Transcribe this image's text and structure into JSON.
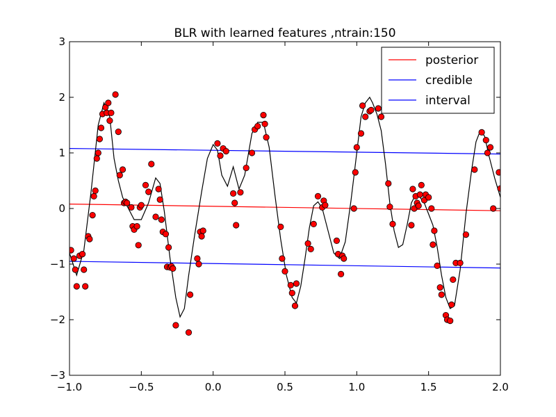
{
  "chart_data": {
    "type": "line",
    "title": "BLR with learned features ,ntrain:150",
    "xlabel": "",
    "ylabel": "",
    "xlim": [
      -1.0,
      2.0
    ],
    "ylim": [
      -3,
      3
    ],
    "x_ticks": [
      -1.0,
      -0.5,
      0.0,
      0.5,
      1.0,
      1.5,
      2.0
    ],
    "x_tick_labels": [
      "−1.0",
      "−0.5",
      "0.0",
      "0.5",
      "1.0",
      "1.5",
      "2.0"
    ],
    "y_ticks": [
      -3,
      -2,
      -1,
      0,
      1,
      2,
      3
    ],
    "y_tick_labels": [
      "−3",
      "−2",
      "−1",
      "0",
      "1",
      "2",
      "3"
    ],
    "grid": false,
    "legend_position": "top-right",
    "legend": [
      {
        "label": "posterior",
        "color": "#ff0000"
      },
      {
        "label": "credible",
        "color": "#0000ff"
      },
      {
        "label": "interval",
        "color": "#0000ff"
      }
    ],
    "series": [
      {
        "name": "posterior",
        "type": "line",
        "color": "#ff0000",
        "x": [
          -1.0,
          2.0
        ],
        "y": [
          0.08,
          -0.04
        ]
      },
      {
        "name": "credible",
        "type": "line",
        "color": "#0000ff",
        "x": [
          -1.0,
          2.0
        ],
        "y": [
          1.08,
          0.98
        ]
      },
      {
        "name": "interval",
        "type": "line",
        "color": "#0000ff",
        "x": [
          -1.0,
          2.0
        ],
        "y": [
          -0.95,
          -1.07
        ]
      },
      {
        "type": "line",
        "color": "#000000",
        "x": [
          -1.0,
          -0.95,
          -0.9,
          -0.85,
          -0.8,
          -0.76,
          -0.72,
          -0.69,
          -0.66,
          -0.63,
          -0.6,
          -0.55,
          -0.5,
          -0.45,
          -0.4,
          -0.37,
          -0.34,
          -0.3,
          -0.26,
          -0.23,
          -0.2,
          -0.17,
          -0.13,
          -0.08,
          -0.04,
          0.0,
          0.03,
          0.06,
          0.1,
          0.14,
          0.18,
          0.22,
          0.27,
          0.31,
          0.35,
          0.39,
          0.43,
          0.47,
          0.51,
          0.55,
          0.58,
          0.61,
          0.64,
          0.67,
          0.7,
          0.73,
          0.76,
          0.8,
          0.84,
          0.88,
          0.92,
          0.96,
          1.0,
          1.03,
          1.06,
          1.09,
          1.11,
          1.14,
          1.17,
          1.2,
          1.23,
          1.26,
          1.29,
          1.32,
          1.35,
          1.38,
          1.41,
          1.44,
          1.47,
          1.5,
          1.53,
          1.56,
          1.59,
          1.62,
          1.65,
          1.68,
          1.72,
          1.76,
          1.8,
          1.83,
          1.86,
          1.89,
          1.92,
          1.96,
          2.0
        ],
        "y": [
          -0.8,
          -1.2,
          -0.75,
          0.3,
          1.5,
          1.9,
          1.65,
          0.9,
          0.5,
          0.2,
          0.05,
          -0.2,
          -0.2,
          0.1,
          0.55,
          0.45,
          -0.05,
          -0.9,
          -1.6,
          -1.95,
          -1.8,
          -1.2,
          -0.5,
          0.3,
          0.9,
          1.15,
          1.05,
          0.6,
          0.4,
          0.75,
          0.35,
          0.6,
          1.35,
          1.55,
          1.55,
          1.1,
          0.25,
          -0.55,
          -1.2,
          -1.6,
          -1.7,
          -1.4,
          -0.9,
          -0.35,
          0.05,
          0.12,
          0.0,
          -0.4,
          -0.8,
          -0.9,
          -0.6,
          0.15,
          1.0,
          1.65,
          1.9,
          2.0,
          1.9,
          1.7,
          1.4,
          0.8,
          0.1,
          -0.4,
          -0.7,
          -0.65,
          -0.3,
          0.1,
          0.25,
          0.2,
          0.1,
          -0.1,
          -0.3,
          -0.7,
          -1.2,
          -1.6,
          -1.8,
          -1.75,
          -1.1,
          -0.1,
          0.7,
          1.2,
          1.4,
          1.3,
          0.95,
          0.55,
          0.2
        ]
      },
      {
        "type": "scatter",
        "color": "#ff0000",
        "x": [
          -0.99,
          -0.97,
          -0.96,
          -0.95,
          -0.93,
          -0.91,
          -0.9,
          -0.89,
          -0.87,
          -0.86,
          -0.84,
          -0.83,
          -0.82,
          -0.81,
          -0.8,
          -0.79,
          -0.78,
          -0.77,
          -0.75,
          -0.74,
          -0.73,
          -0.72,
          -0.71,
          -0.68,
          -0.66,
          -0.65,
          -0.63,
          -0.62,
          -0.61,
          -0.6,
          -0.57,
          -0.56,
          -0.55,
          -0.53,
          -0.52,
          -0.51,
          -0.5,
          -0.47,
          -0.45,
          -0.43,
          -0.4,
          -0.38,
          -0.37,
          -0.36,
          -0.35,
          -0.33,
          -0.32,
          -0.31,
          -0.3,
          -0.29,
          -0.28,
          -0.26,
          -0.17,
          -0.16,
          -0.11,
          -0.1,
          -0.09,
          -0.08,
          -0.07,
          0.03,
          0.05,
          0.07,
          0.09,
          0.14,
          0.15,
          0.16,
          0.19,
          0.23,
          0.27,
          0.29,
          0.31,
          0.35,
          0.36,
          0.37,
          0.47,
          0.48,
          0.5,
          0.54,
          0.55,
          0.57,
          0.58,
          0.66,
          0.68,
          0.7,
          0.73,
          0.76,
          0.77,
          0.78,
          0.86,
          0.87,
          0.89,
          0.9,
          0.91,
          0.98,
          0.99,
          1.0,
          1.03,
          1.04,
          1.06,
          1.09,
          1.1,
          1.15,
          1.17,
          1.22,
          1.23,
          1.25,
          1.38,
          1.39,
          1.4,
          1.41,
          1.42,
          1.43,
          1.44,
          1.45,
          1.47,
          1.48,
          1.5,
          1.52,
          1.53,
          1.54,
          1.56,
          1.58,
          1.59,
          1.62,
          1.63,
          1.65,
          1.66,
          1.67,
          1.69,
          1.72,
          1.76,
          1.82,
          1.87,
          1.9,
          1.91,
          1.93,
          1.95,
          1.99,
          2.0
        ],
        "y": [
          -0.75,
          -0.9,
          -1.1,
          -1.4,
          -0.85,
          -0.82,
          -1.1,
          -1.4,
          -0.5,
          -0.55,
          -0.12,
          0.22,
          0.32,
          0.9,
          1.0,
          1.25,
          1.45,
          1.7,
          1.82,
          1.72,
          1.9,
          1.58,
          1.72,
          2.05,
          1.38,
          0.6,
          0.7,
          0.1,
          0.12,
          0.1,
          0.02,
          -0.32,
          -0.38,
          -0.32,
          -0.66,
          0.02,
          0.06,
          0.42,
          0.3,
          0.8,
          -0.15,
          0.35,
          0.16,
          -0.2,
          -0.42,
          -0.46,
          -1.05,
          -0.7,
          -1.06,
          -1.04,
          -1.08,
          -2.1,
          -2.23,
          -1.55,
          -0.9,
          -1.0,
          -0.42,
          -0.5,
          -0.4,
          1.17,
          0.95,
          1.08,
          1.03,
          0.27,
          0.1,
          -0.3,
          0.29,
          0.73,
          1.0,
          1.42,
          1.48,
          1.68,
          1.52,
          1.28,
          -0.33,
          -0.9,
          -1.13,
          -1.38,
          -1.52,
          -1.75,
          -1.35,
          -0.63,
          -0.73,
          -0.28,
          0.22,
          0.02,
          0.14,
          0.06,
          -0.58,
          -0.82,
          -1.18,
          -0.85,
          -0.9,
          0.0,
          0.65,
          1.1,
          1.35,
          1.85,
          1.65,
          1.75,
          1.77,
          1.8,
          1.65,
          0.45,
          0.03,
          -0.28,
          -0.3,
          0.35,
          0.0,
          0.22,
          0.1,
          0.05,
          0.25,
          0.42,
          0.15,
          0.25,
          0.2,
          0.0,
          -0.65,
          -0.4,
          -1.03,
          -1.42,
          -1.55,
          -1.92,
          -2.0,
          -2.02,
          -1.73,
          -1.28,
          -0.98,
          -0.98,
          -0.47,
          0.7,
          1.37,
          1.23,
          1.0,
          1.1,
          0.0,
          0.65,
          0.36
        ]
      }
    ]
  }
}
